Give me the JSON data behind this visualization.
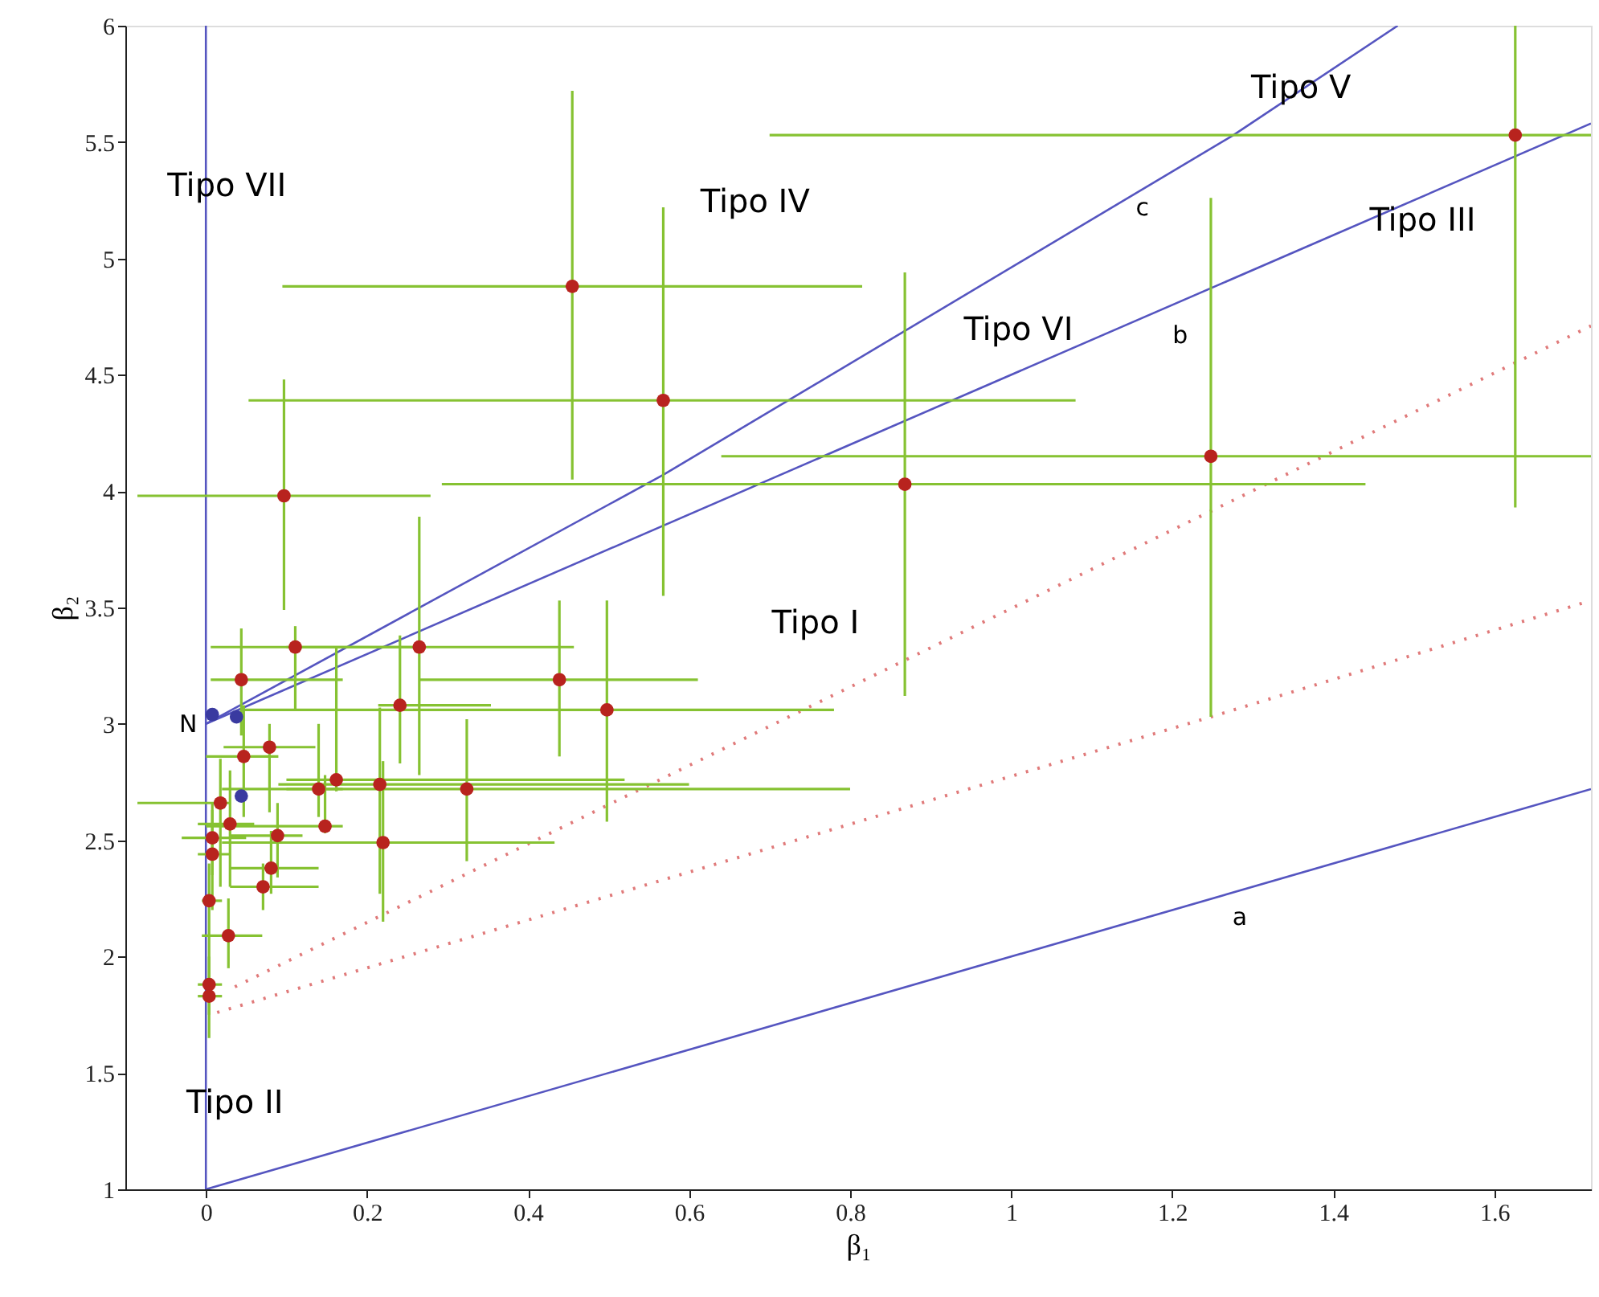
{
  "chart_data": {
    "type": "scatter",
    "xlabel": "β₁",
    "ylabel": "β₂",
    "xlim": [
      -0.1,
      1.72
    ],
    "ylim": [
      1,
      6
    ],
    "xticks": [
      0,
      0.2,
      0.4,
      0.6,
      0.8,
      1,
      1.2,
      1.4,
      1.6
    ],
    "yticks": [
      1,
      1.5,
      2,
      2.5,
      3,
      3.5,
      4,
      4.5,
      5,
      5.5,
      6
    ],
    "grid": false,
    "marker": "circle",
    "series": [
      {
        "type": "line",
        "color": "#5555c0",
        "line_style": "solid",
        "marker": "none",
        "x": [
          0,
          0
        ],
        "values": [
          1,
          6
        ]
      },
      {
        "type": "line",
        "color": "#5555c0",
        "line_style": "solid",
        "marker": "none",
        "x": [
          0,
          1.72
        ],
        "values": [
          1,
          2.72
        ]
      },
      {
        "type": "line",
        "color": "#5555c0",
        "line_style": "solid",
        "marker": "none",
        "x": [
          0,
          1.72
        ],
        "values": [
          3,
          5.58
        ]
      },
      {
        "type": "line",
        "color": "#5555c0",
        "line_style": "solid",
        "marker": "none",
        "x": [
          0,
          0.568,
          1.276,
          1.48
        ],
        "values": [
          3,
          4.07,
          5.53,
          6
        ]
      },
      {
        "type": "line",
        "color": "#e07a7a",
        "line_style": "dotted",
        "marker": "none",
        "x": [
          0.036,
          1.72
        ],
        "values": [
          1.87,
          4.71
        ]
      },
      {
        "type": "line",
        "color": "#e07a7a",
        "line_style": "dotted",
        "marker": "none",
        "x": [
          0.014,
          1.248,
          1.72
        ],
        "values": [
          1.76,
          3.03,
          3.53
        ]
      },
      {
        "color": "#b8231e",
        "x": [
          1.626,
          0.455,
          0.568,
          0.868,
          1.248,
          0.097,
          0.265,
          0.111,
          0.439,
          0.498,
          0.241,
          0.044,
          0.079,
          0.047,
          0.162,
          0.14,
          0.216,
          0.324,
          0.018,
          0.03,
          0.148,
          0.089,
          0.008,
          0.008,
          0.22,
          0.081,
          0.071,
          0.004,
          0.028,
          0.004,
          0.004
        ],
        "values": [
          5.53,
          4.88,
          4.39,
          4.03,
          4.15,
          3.98,
          3.33,
          3.33,
          3.19,
          3.06,
          3.08,
          3.19,
          2.9,
          2.86,
          2.76,
          2.72,
          2.74,
          2.72,
          2.66,
          2.57,
          2.56,
          2.52,
          2.51,
          2.44,
          2.49,
          2.38,
          2.3,
          2.24,
          2.09,
          1.88,
          1.83
        ],
        "xerrors": [
          [
            0.7,
            1.72
          ],
          [
            0.095,
            0.815
          ],
          [
            0.053,
            1.08
          ],
          [
            0.293,
            1.44
          ],
          [
            0.64,
            1.72
          ],
          [
            -0.085,
            0.279
          ],
          [
            0.1,
            0.457
          ],
          [
            0.006,
            0.27
          ],
          [
            0.265,
            0.611
          ],
          [
            0.045,
            0.78
          ],
          [
            0.214,
            0.354
          ],
          [
            0.006,
            0.17
          ],
          [
            0.022,
            0.136
          ],
          [
            0,
            0.09
          ],
          [
            0.1,
            0.52
          ],
          [
            0.1,
            0.17
          ],
          [
            0.09,
            0.6
          ],
          [
            0.02,
            0.8
          ],
          [
            -0.085,
            0.03
          ],
          [
            -0.01,
            0.06
          ],
          [
            0,
            0.17
          ],
          [
            0.03,
            0.12
          ],
          [
            -0.03,
            0.05
          ],
          [
            -0.01,
            0.03
          ],
          [
            0.02,
            0.433
          ],
          [
            0.03,
            0.14
          ],
          [
            0.03,
            0.14
          ],
          [
            -0.005,
            0.02
          ],
          [
            -0.005,
            0.07
          ],
          [
            -0.01,
            0.02
          ],
          [
            -0.01,
            0.02
          ]
        ],
        "errors": [
          [
            3.93,
            6
          ],
          [
            4.05,
            5.72
          ],
          [
            3.55,
            5.22
          ],
          [
            3.12,
            4.94
          ],
          [
            3.03,
            5.26
          ],
          [
            3.49,
            4.48
          ],
          [
            2.78,
            3.89
          ],
          [
            3.06,
            3.42
          ],
          [
            2.86,
            3.53
          ],
          [
            2.58,
            3.53
          ],
          [
            2.83,
            3.38
          ],
          [
            2.95,
            3.41
          ],
          [
            2.62,
            3
          ],
          [
            2.6,
            3.08
          ],
          [
            2.71,
            3.33
          ],
          [
            2.6,
            3
          ],
          [
            2.27,
            3.07
          ],
          [
            2.41,
            3.02
          ],
          [
            2.3,
            2.85
          ],
          [
            2.3,
            2.8
          ],
          [
            2.53,
            2.78
          ],
          [
            2.34,
            2.66
          ],
          [
            2.35,
            2.66
          ],
          [
            2.2,
            2.63
          ],
          [
            2.15,
            2.84
          ],
          [
            2.27,
            2.54
          ],
          [
            2.2,
            2.4
          ],
          [
            1.9,
            2.4
          ],
          [
            1.95,
            2.25
          ],
          [
            1.75,
            2
          ],
          [
            1.65,
            1.9
          ]
        ]
      },
      {
        "color": "#3a3aa0",
        "x": [
          0.008,
          0.038,
          0.044
        ],
        "values": [
          3.04,
          3.03,
          2.69
        ]
      }
    ],
    "annotations": [
      "Tipo VII",
      "Tipo IV",
      "Tipo V",
      "c",
      "Tipo III",
      "Tipo VI",
      "b",
      "Tipo I",
      "N",
      "Tipo II",
      "a"
    ]
  }
}
